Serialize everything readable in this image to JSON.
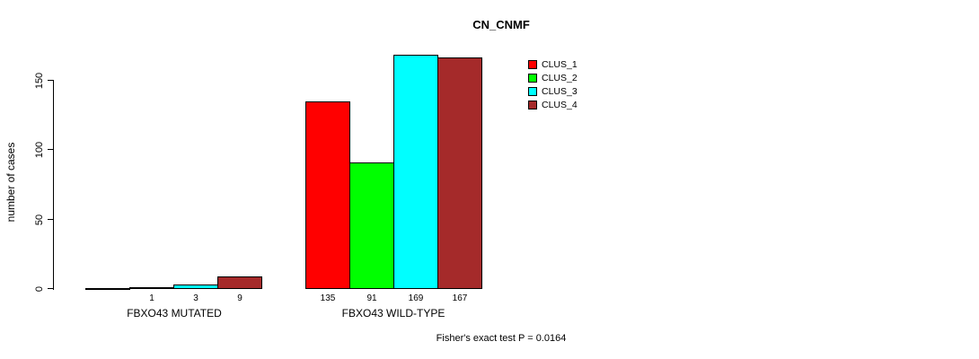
{
  "title": "CN_CNMF",
  "footer_note": "Fisher's exact test P = 0.0164",
  "chart_data": {
    "type": "bar",
    "title": "CN_CNMF",
    "xlabel": "",
    "ylabel": "number of cases",
    "categories": [
      "FBXO43 MUTATED",
      "FBXO43 WILD-TYPE"
    ],
    "series": [
      {
        "name": "CLUS_1",
        "color": "#FF0000",
        "values": [
          0,
          135
        ]
      },
      {
        "name": "CLUS_2",
        "color": "#00FF00",
        "values": [
          1,
          91
        ]
      },
      {
        "name": "CLUS_3",
        "color": "#00FFFF",
        "values": [
          3,
          169
        ]
      },
      {
        "name": "CLUS_4",
        "color": "#A52A2A",
        "values": [
          9,
          167
        ]
      }
    ],
    "bar_value_labels": [
      [
        "",
        "1",
        "3",
        "9"
      ],
      [
        "135",
        "91",
        "169",
        "167"
      ]
    ],
    "y_ticks": [
      0,
      50,
      100,
      150
    ],
    "ylim": [
      0,
      170
    ],
    "grid": false,
    "legend_position": "top-right",
    "annotation": "Fisher's exact test P = 0.0164"
  }
}
